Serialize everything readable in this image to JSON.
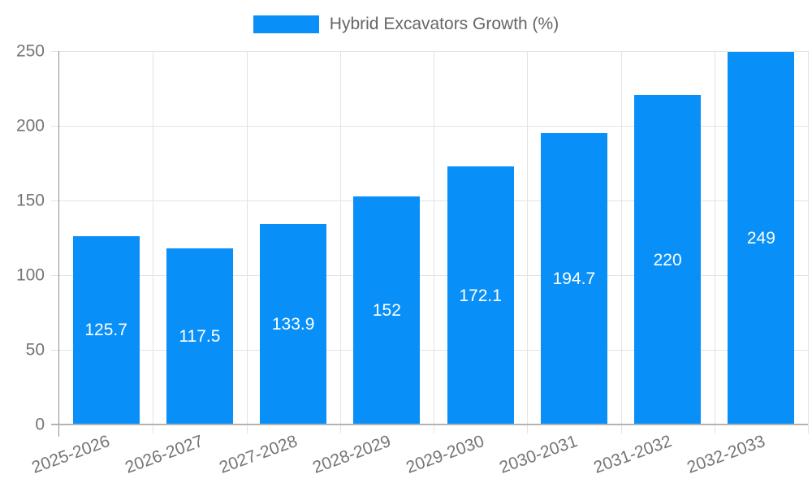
{
  "chart_data": {
    "type": "bar",
    "title": "",
    "legend": {
      "label": "Hybrid Excavators Growth (%)",
      "position": "top"
    },
    "categories": [
      "2025-2026",
      "2026-2027",
      "2027-2028",
      "2028-2029",
      "2029-2030",
      "2030-2031",
      "2031-2032",
      "2032-2033"
    ],
    "values": [
      125.7,
      117.5,
      133.9,
      152,
      172.1,
      194.7,
      220,
      249
    ],
    "value_labels": [
      "125.7",
      "117.5",
      "133.9",
      "152",
      "172.1",
      "194.7",
      "220",
      "249"
    ],
    "xlabel": "",
    "ylabel": "",
    "ylim": [
      0,
      250
    ],
    "yticks": [
      0,
      50,
      100,
      150,
      200,
      250
    ],
    "grid": true,
    "x_label_rotation_deg": -20,
    "legend_position": "top-center",
    "colors": {
      "bar": "#0990f8",
      "value_label": "#ffffff",
      "tick_label": "#757575",
      "legend_text": "#666666",
      "gridline": "#e3e3e3",
      "axis_line": "#8f8f8f"
    }
  }
}
